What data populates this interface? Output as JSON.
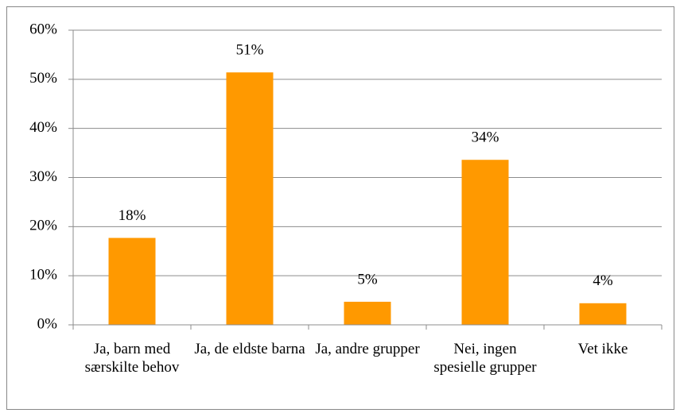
{
  "chart_data": {
    "type": "bar",
    "categories": [
      "Ja, barn med særskilte behov",
      "Ja, de eldste barna",
      "Ja, andre grupper",
      "Nei, ingen spesielle grupper",
      "Vet ikke"
    ],
    "values": [
      17.7,
      51.4,
      4.7,
      33.6,
      4.4
    ],
    "value_labels": [
      "18%",
      "51%",
      "5%",
      "34%",
      "4%"
    ],
    "color": "#ff9900",
    "ylim": [
      0,
      60
    ],
    "yticks": [
      {
        "value": 0,
        "label": "0%"
      },
      {
        "value": 10,
        "label": "10%"
      },
      {
        "value": 20,
        "label": "20%"
      },
      {
        "value": 30,
        "label": "30%"
      },
      {
        "value": 40,
        "label": "40%"
      },
      {
        "value": 50,
        "label": "50%"
      },
      {
        "value": 60,
        "label": "60%"
      }
    ],
    "grid": true
  }
}
